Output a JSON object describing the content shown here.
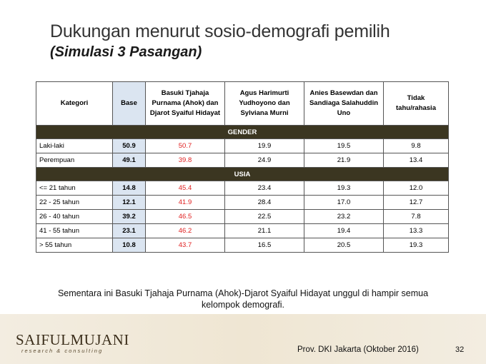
{
  "title": "Dukungan menurut sosio-demografi pemilih",
  "subtitle": "(Simulasi 3 Pasangan)",
  "table": {
    "headers": {
      "kategori": "Kategori",
      "base": "Base",
      "c1": "Basuki Tjahaja Purnama (Ahok) dan Djarot Syaiful Hidayat",
      "c2": "Agus Harimurti Yudhoyono dan Sylviana Murni",
      "c3": "Anies Basewdan dan Sandiaga Salahuddin Uno",
      "c4": "Tidak tahu/rahasia"
    },
    "sections": [
      {
        "label": "GENDER",
        "rows": [
          {
            "cat": "Laki-laki",
            "base": "50.9",
            "c1": "50.7",
            "c2": "19.9",
            "c3": "19.5",
            "c4": "9.8"
          },
          {
            "cat": "Perempuan",
            "base": "49.1",
            "c1": "39.8",
            "c2": "24.9",
            "c3": "21.9",
            "c4": "13.4"
          }
        ]
      },
      {
        "label": "USIA",
        "rows": [
          {
            "cat": "<= 21 tahun",
            "base": "14.8",
            "c1": "45.4",
            "c2": "23.4",
            "c3": "19.3",
            "c4": "12.0"
          },
          {
            "cat": "22 - 25 tahun",
            "base": "12.1",
            "c1": "41.9",
            "c2": "28.4",
            "c3": "17.0",
            "c4": "12.7"
          },
          {
            "cat": "26 -  40 tahun",
            "base": "39.2",
            "c1": "46.5",
            "c2": "22.5",
            "c3": "23.2",
            "c4": "7.8"
          },
          {
            "cat": "41 - 55 tahun",
            "base": "23.1",
            "c1": "46.2",
            "c2": "21.1",
            "c3": "19.4",
            "c4": "13.3"
          },
          {
            "cat": "> 55 tahun",
            "base": "10.8",
            "c1": "43.7",
            "c2": "16.5",
            "c3": "20.5",
            "c4": "19.3"
          }
        ]
      }
    ]
  },
  "footnote": "Sementara ini Basuki Tjahaja Purnama (Ahok)-Djarot Syaiful Hidayat unggul di hampir semua kelompok demografi.",
  "logo": {
    "main": "SAIFULMUJANI",
    "sub": "research & consulting"
  },
  "source": "Prov. DKI Jakarta (Oktober 2016)",
  "page_number": "32",
  "colors": {
    "section_bg": "#3b3621",
    "base_bg": "#dbe5f1",
    "highlight": "#e02020"
  }
}
